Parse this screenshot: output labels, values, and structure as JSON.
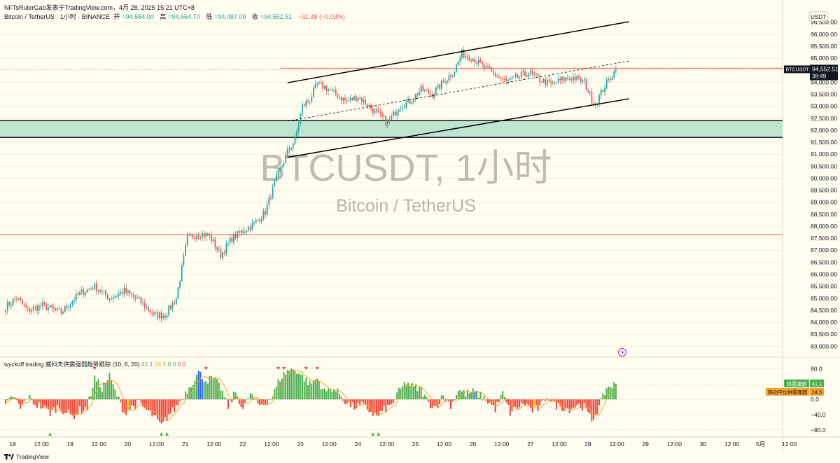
{
  "header": {
    "publisher": "NFTsRulerGao发表于TradingView.com，4月 28, 2025 15:21 UTC+8",
    "symbol": "Bitcoin / TetherUS · 1小时 · BINANCE",
    "open_label": "开",
    "open": "=94,584.00",
    "high_label": "高",
    "high": "=94,664.70",
    "low_label": "低",
    "low": "=94,487.09",
    "close_label": "收",
    "close": "=94,552.51",
    "change": "−31.48 (−0.03%)"
  },
  "watermark": {
    "title": "BTCUSDT, 1小时",
    "subtitle": "Bitcoin / TetherUS"
  },
  "currency_label": "USDT",
  "price_tag": {
    "symbol": "BTCUSDT",
    "price": "94,552.51",
    "countdown": "38:49"
  },
  "indicator": {
    "title": "wyckoff trading 威科夫供需强弱趋势跟踪 (10, 6, 20)",
    "v1": "41.1",
    "v2": "24.5",
    "v3": "0.0",
    "v4": "0.0",
    "tag1": {
      "label": "供需强弱",
      "value": "41.1"
    },
    "tag2": {
      "label": "移动平均供需强弱",
      "value": "24.5"
    }
  },
  "footer": {
    "brand": "TradingView"
  },
  "colors": {
    "up": "#26a69a",
    "down": "#ef5350",
    "zone": "#bfe4cf",
    "hist_up": "#4caf50",
    "hist_dn": "#f44336",
    "ma": "#f4a22c",
    "blue": "#2962ff",
    "yellow": "#ffd600",
    "signal_red": "#f23645"
  },
  "chart_data": [
    {
      "type": "candlestick",
      "title": "BTCUSDT, 1小时",
      "ylim": [
        82600,
        96900
      ],
      "y_ticks": [
        83000,
        83500,
        84000,
        84500,
        85000,
        85500,
        86000,
        86500,
        87000,
        87500,
        88000,
        88500,
        89000,
        89500,
        90000,
        90500,
        91000,
        91500,
        92000,
        92500,
        93000,
        93500,
        94000,
        94500,
        95000,
        95500,
        96000,
        96500
      ],
      "y_tick_labels": [
        "83,000.00",
        "83,500.00",
        "84,000.00",
        "84,500.00",
        "85,000.00",
        "85,500.00",
        "86,000.00",
        "86,500.00",
        "87,000.00",
        "87,500.00",
        "88,000.00",
        "88,500.00",
        "89,000.00",
        "89,500.00",
        "90,000.00",
        "90,500.00",
        "91,000.00",
        "91,500.00",
        "92,000.00",
        "92,500.00",
        "93,000.00",
        "93,500.00",
        "94,000.00",
        "94,500.00",
        "95,000.00",
        "95,500.00",
        "96,000.00",
        "96,500.00"
      ],
      "x_tick_labels": [
        "18",
        "12:00",
        "19",
        "12:00",
        "20",
        "12:00",
        "21",
        "12:00",
        "22",
        "12:00",
        "23",
        "12:00",
        "24",
        "12:00",
        "25",
        "12:00",
        "26",
        "12:00",
        "27",
        "12:00",
        "28",
        "12:00",
        "29",
        "12:00",
        "30",
        "12:00",
        "5月",
        "12:00"
      ],
      "close_anchors": [
        [
          0,
          84650
        ],
        [
          6,
          85000
        ],
        [
          12,
          84500
        ],
        [
          20,
          84700
        ],
        [
          30,
          84400
        ],
        [
          40,
          85200
        ],
        [
          48,
          85500
        ],
        [
          56,
          85000
        ],
        [
          64,
          85300
        ],
        [
          72,
          84900
        ],
        [
          80,
          84300
        ],
        [
          86,
          84300
        ],
        [
          92,
          85000
        ],
        [
          98,
          87500
        ],
        [
          104,
          87700
        ],
        [
          110,
          87600
        ],
        [
          116,
          86800
        ],
        [
          122,
          87500
        ],
        [
          128,
          87800
        ],
        [
          134,
          88100
        ],
        [
          140,
          88600
        ],
        [
          146,
          90000
        ],
        [
          152,
          91100
        ],
        [
          156,
          91600
        ],
        [
          160,
          93000
        ],
        [
          164,
          93300
        ],
        [
          168,
          93900
        ],
        [
          172,
          93800
        ],
        [
          178,
          93500
        ],
        [
          184,
          93200
        ],
        [
          190,
          93400
        ],
        [
          196,
          93000
        ],
        [
          200,
          92700
        ],
        [
          206,
          92300
        ],
        [
          212,
          93000
        ],
        [
          218,
          93200
        ],
        [
          224,
          93700
        ],
        [
          230,
          93500
        ],
        [
          236,
          94000
        ],
        [
          242,
          94500
        ],
        [
          246,
          95200
        ],
        [
          252,
          95000
        ],
        [
          258,
          94600
        ],
        [
          264,
          94300
        ],
        [
          270,
          94000
        ],
        [
          276,
          94200
        ],
        [
          282,
          94400
        ],
        [
          288,
          94100
        ],
        [
          294,
          93900
        ],
        [
          300,
          94100
        ],
        [
          306,
          94200
        ],
        [
          312,
          94000
        ],
        [
          316,
          93300
        ],
        [
          318,
          93100
        ],
        [
          322,
          93700
        ],
        [
          326,
          94200
        ],
        [
          329,
          94550
        ]
      ],
      "reference_lines": [
        94584,
        87650
      ],
      "demand_zone": [
        91700,
        92400
      ],
      "channel_upper": [
        [
          152,
          93980
        ],
        [
          336,
          96520
        ]
      ],
      "channel_lower": [
        [
          152,
          90870
        ],
        [
          336,
          93310
        ]
      ],
      "channel_mid": [
        [
          152,
          92380
        ],
        [
          336,
          94880
        ]
      ],
      "last_price": 94552.51
    },
    {
      "type": "histogram",
      "title": "wyckoff trading 威科夫供需强弱趋势跟踪 (10, 6, 20)",
      "ylim": [
        -95,
        92
      ],
      "y_ticks": [
        80,
        40,
        0,
        -40,
        -80
      ],
      "y_tick_labels": [
        "80.0",
        "40.0",
        "0.0",
        "−40.0",
        "−80.0"
      ],
      "value_anchors": [
        [
          0,
          -18
        ],
        [
          4,
          10
        ],
        [
          8,
          -25
        ],
        [
          12,
          8
        ],
        [
          16,
          -12
        ],
        [
          20,
          -20
        ],
        [
          24,
          -35
        ],
        [
          28,
          -20
        ],
        [
          32,
          -30
        ],
        [
          36,
          -45
        ],
        [
          40,
          -28
        ],
        [
          44,
          -22
        ],
        [
          48,
          55
        ],
        [
          52,
          30
        ],
        [
          56,
          60
        ],
        [
          60,
          10
        ],
        [
          64,
          -35
        ],
        [
          68,
          -20
        ],
        [
          72,
          -10
        ],
        [
          76,
          -28
        ],
        [
          80,
          -45
        ],
        [
          84,
          -70
        ],
        [
          88,
          -40
        ],
        [
          92,
          -20
        ],
        [
          96,
          10
        ],
        [
          100,
          40
        ],
        [
          104,
          70
        ],
        [
          108,
          50
        ],
        [
          112,
          55
        ],
        [
          116,
          30
        ],
        [
          120,
          -20
        ],
        [
          124,
          20
        ],
        [
          128,
          -25
        ],
        [
          132,
          15
        ],
        [
          136,
          -15
        ],
        [
          140,
          -10
        ],
        [
          144,
          10
        ],
        [
          148,
          55
        ],
        [
          152,
          75
        ],
        [
          156,
          80
        ],
        [
          160,
          60
        ],
        [
          164,
          40
        ],
        [
          168,
          55
        ],
        [
          172,
          20
        ],
        [
          176,
          30
        ],
        [
          180,
          15
        ],
        [
          184,
          -10
        ],
        [
          188,
          -20
        ],
        [
          192,
          -15
        ],
        [
          196,
          -28
        ],
        [
          200,
          -45
        ],
        [
          204,
          -28
        ],
        [
          208,
          -15
        ],
        [
          212,
          20
        ],
        [
          216,
          45
        ],
        [
          220,
          30
        ],
        [
          224,
          25
        ],
        [
          228,
          -10
        ],
        [
          232,
          -20
        ],
        [
          236,
          10
        ],
        [
          240,
          -15
        ],
        [
          244,
          25
        ],
        [
          248,
          15
        ],
        [
          252,
          20
        ],
        [
          256,
          10
        ],
        [
          260,
          -5
        ],
        [
          264,
          -25
        ],
        [
          268,
          15
        ],
        [
          272,
          -35
        ],
        [
          276,
          -20
        ],
        [
          280,
          -10
        ],
        [
          284,
          -30
        ],
        [
          288,
          -22
        ],
        [
          292,
          10
        ],
        [
          296,
          -15
        ],
        [
          300,
          -20
        ],
        [
          304,
          -25
        ],
        [
          308,
          -15
        ],
        [
          312,
          -20
        ],
        [
          316,
          -55
        ],
        [
          320,
          -20
        ],
        [
          324,
          30
        ],
        [
          329,
          41
        ]
      ],
      "blue_bars": [
        104,
        105,
        106,
        122,
        241,
        253
      ],
      "yellow_bars": [
        66,
        285
      ],
      "moving_average_last": 24.5
    }
  ]
}
